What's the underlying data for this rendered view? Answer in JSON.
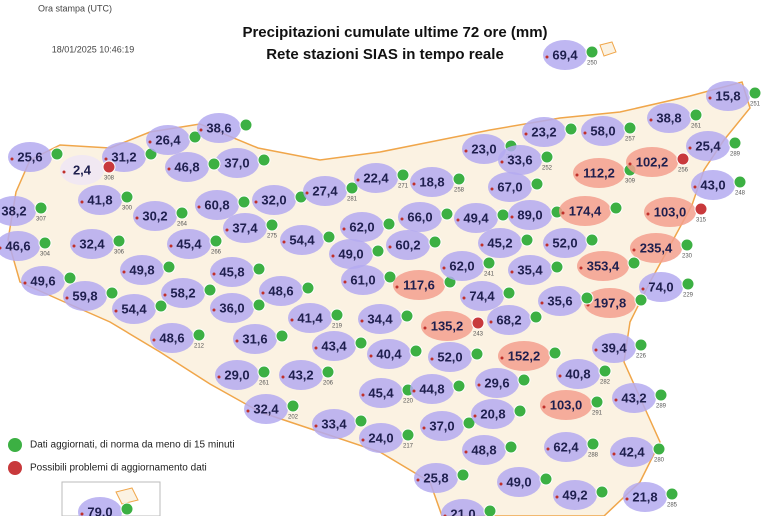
{
  "header": {
    "print_label": "Ora stampa (UTC)",
    "timestamp": "18/01/2025 10:46:19"
  },
  "title": {
    "line1": "Precipitazioni cumulate ultime 72 ore (mm)",
    "line2": "Rete stazioni SIAS in tempo reale"
  },
  "legend": {
    "items": [
      {
        "text": "Dati aggiornati, di norma da meno di 15 minuti",
        "icon_color": "#3cb043"
      },
      {
        "text": "Possibili problemi di aggiornamento dati",
        "icon_color": "#c8393b"
      }
    ]
  },
  "stations": [
    {
      "value": "69,4",
      "id": "250",
      "color": "#b4aaf0"
    },
    {
      "value": "15,8",
      "id": "251",
      "color": "#b4aaf0"
    },
    {
      "value": "25,6",
      "color": "#b4aaf0"
    },
    {
      "value": "31,2",
      "color": "#b4aaf0"
    },
    {
      "value": "26,4",
      "color": "#b4aaf0"
    },
    {
      "value": "38,6",
      "color": "#b4aaf0"
    },
    {
      "value": "37,0",
      "color": "#b4aaf0"
    },
    {
      "value": "46,8",
      "color": "#b4aaf0"
    },
    {
      "value": "2,4",
      "id": "308",
      "color": "#efe6f5",
      "icon_color": "#c8393b"
    },
    {
      "value": "41,8",
      "id": "300",
      "color": "#b4aaf0"
    },
    {
      "value": "38,2",
      "id": "307",
      "color": "#b4aaf0"
    },
    {
      "value": "30,2",
      "id": "264",
      "color": "#b4aaf0"
    },
    {
      "value": "60,8",
      "color": "#b4aaf0"
    },
    {
      "value": "32,0",
      "color": "#b4aaf0"
    },
    {
      "value": "27,4",
      "id": "281",
      "color": "#b4aaf0"
    },
    {
      "value": "22,4",
      "id": "271",
      "color": "#b4aaf0"
    },
    {
      "value": "18,8",
      "id": "258",
      "color": "#b4aaf0"
    },
    {
      "value": "23,0",
      "id": "244",
      "color": "#b4aaf0"
    },
    {
      "value": "23,2",
      "color": "#b4aaf0"
    },
    {
      "value": "58,0",
      "id": "257",
      "color": "#b4aaf0"
    },
    {
      "value": "38,8",
      "id": "261",
      "color": "#b4aaf0"
    },
    {
      "value": "25,4",
      "id": "289",
      "color": "#b4aaf0"
    },
    {
      "value": "33,6",
      "id": "252",
      "color": "#b4aaf0"
    },
    {
      "value": "112,2",
      "id": "309",
      "color": "#f3a08e"
    },
    {
      "value": "102,2",
      "id": "256",
      "color": "#f3a08e",
      "icon_color": "#c8393b"
    },
    {
      "value": "67,0",
      "color": "#b4aaf0"
    },
    {
      "value": "43,0",
      "id": "248",
      "color": "#b4aaf0"
    },
    {
      "value": "46,6",
      "id": "304",
      "color": "#b4aaf0"
    },
    {
      "value": "32,4",
      "id": "306",
      "color": "#b4aaf0"
    },
    {
      "value": "45,4",
      "id": "266",
      "color": "#b4aaf0"
    },
    {
      "value": "37,4",
      "id": "275",
      "color": "#b4aaf0"
    },
    {
      "value": "54,4",
      "color": "#b4aaf0"
    },
    {
      "value": "62,0",
      "color": "#b4aaf0"
    },
    {
      "value": "66,0",
      "color": "#b4aaf0"
    },
    {
      "value": "49,4",
      "color": "#b4aaf0"
    },
    {
      "value": "89,0",
      "color": "#b4aaf0"
    },
    {
      "value": "174,4",
      "color": "#f3a08e"
    },
    {
      "value": "103,0",
      "id": "315",
      "color": "#f3a08e",
      "icon_color": "#c8393b"
    },
    {
      "value": "60,2",
      "color": "#b4aaf0"
    },
    {
      "value": "45,2",
      "color": "#b4aaf0"
    },
    {
      "value": "52,0",
      "color": "#b4aaf0"
    },
    {
      "value": "235,4",
      "id": "230",
      "color": "#f3a08e"
    },
    {
      "value": "49,0",
      "color": "#b4aaf0"
    },
    {
      "value": "49,6",
      "color": "#b4aaf0"
    },
    {
      "value": "49,8",
      "color": "#b4aaf0"
    },
    {
      "value": "45,8",
      "color": "#b4aaf0"
    },
    {
      "value": "61,0",
      "color": "#b4aaf0"
    },
    {
      "value": "117,6",
      "color": "#f3a08e"
    },
    {
      "value": "62,0",
      "id": "241",
      "color": "#b4aaf0"
    },
    {
      "value": "35,4",
      "color": "#b4aaf0"
    },
    {
      "value": "353,4",
      "color": "#f3a08e"
    },
    {
      "value": "59,8",
      "color": "#b4aaf0"
    },
    {
      "value": "58,2",
      "color": "#b4aaf0"
    },
    {
      "value": "48,6",
      "color": "#b4aaf0"
    },
    {
      "value": "74,0",
      "id": "229",
      "color": "#b4aaf0"
    },
    {
      "value": "54,4",
      "color": "#b4aaf0"
    },
    {
      "value": "36,0",
      "color": "#b4aaf0"
    },
    {
      "value": "74,4",
      "color": "#b4aaf0"
    },
    {
      "value": "197,8",
      "color": "#f3a08e"
    },
    {
      "value": "35,6",
      "color": "#b4aaf0"
    },
    {
      "value": "41,4",
      "id": "219",
      "color": "#b4aaf0"
    },
    {
      "value": "34,4",
      "color": "#b4aaf0"
    },
    {
      "value": "135,2",
      "id": "243",
      "color": "#f3a08e",
      "icon_color": "#c8393b"
    },
    {
      "value": "68,2",
      "color": "#b4aaf0"
    },
    {
      "value": "48,6",
      "id": "212",
      "color": "#b4aaf0"
    },
    {
      "value": "31,6",
      "color": "#b4aaf0"
    },
    {
      "value": "43,4",
      "color": "#b4aaf0"
    },
    {
      "value": "40,4",
      "color": "#b4aaf0"
    },
    {
      "value": "52,0",
      "color": "#b4aaf0"
    },
    {
      "value": "152,2",
      "color": "#f3a08e"
    },
    {
      "value": "39,4",
      "id": "226",
      "color": "#b4aaf0"
    },
    {
      "value": "29,0",
      "id": "261",
      "color": "#b4aaf0"
    },
    {
      "value": "43,2",
      "id": "206",
      "color": "#b4aaf0"
    },
    {
      "value": "45,4",
      "id": "220",
      "color": "#b4aaf0"
    },
    {
      "value": "44,8",
      "color": "#b4aaf0"
    },
    {
      "value": "29,6",
      "color": "#b4aaf0"
    },
    {
      "value": "40,8",
      "id": "282",
      "color": "#b4aaf0"
    },
    {
      "value": "43,2",
      "id": "289",
      "color": "#b4aaf0"
    },
    {
      "value": "103,0",
      "id": "291",
      "color": "#f3a08e"
    },
    {
      "value": "32,4",
      "id": "202",
      "color": "#b4aaf0"
    },
    {
      "value": "33,4",
      "color": "#b4aaf0"
    },
    {
      "value": "24,0",
      "id": "217",
      "color": "#b4aaf0"
    },
    {
      "value": "37,0",
      "color": "#b4aaf0"
    },
    {
      "value": "20,8",
      "color": "#b4aaf0"
    },
    {
      "value": "62,4",
      "id": "288",
      "color": "#b4aaf0"
    },
    {
      "value": "42,4",
      "id": "280",
      "color": "#b4aaf0"
    },
    {
      "value": "48,8",
      "color": "#b4aaf0"
    },
    {
      "value": "25,8",
      "color": "#b4aaf0"
    },
    {
      "value": "49,0",
      "color": "#b4aaf0"
    },
    {
      "value": "49,2",
      "color": "#b4aaf0"
    },
    {
      "value": "21,8",
      "id": "285",
      "color": "#b4aaf0"
    },
    {
      "value": "79,0",
      "color": "#b4aaf0"
    },
    {
      "value": "21,0",
      "color": "#b4aaf0"
    }
  ]
}
